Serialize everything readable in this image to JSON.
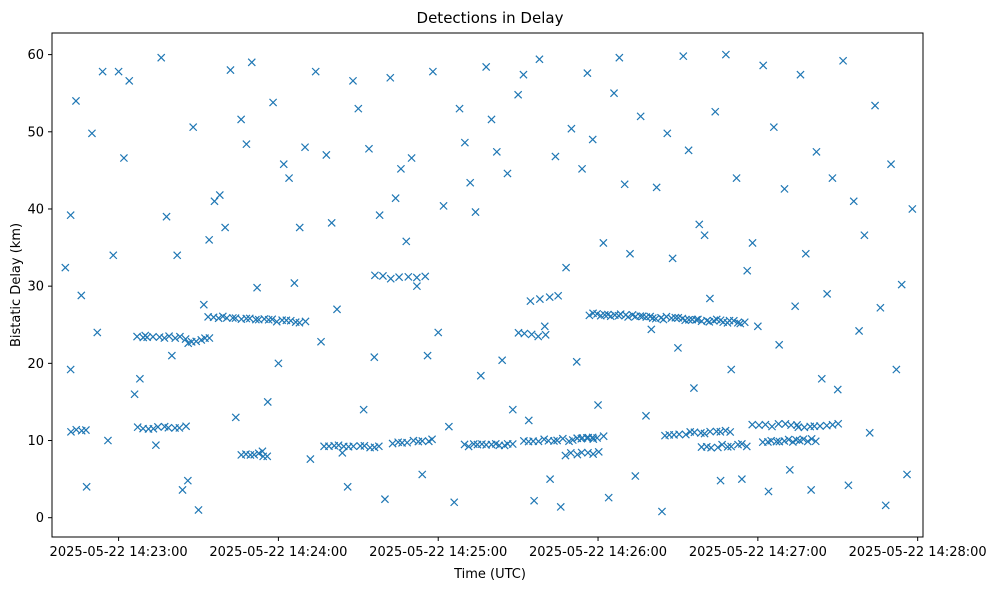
{
  "chart_data": {
    "type": "scatter",
    "title": "Detections in Delay",
    "xlabel": "Time (UTC)",
    "ylabel": "Bistatic Delay (km)",
    "x_ticks": [
      "2025-05-22 14:23:00",
      "2025-05-22 14:24:00",
      "2025-05-22 14:25:00",
      "2025-05-22 14:26:00",
      "2025-05-22 14:27:00",
      "2025-05-22 14:28:00"
    ],
    "x_tick_values": [
      0,
      60,
      120,
      180,
      240,
      300
    ],
    "y_ticks": [
      "0",
      "10",
      "20",
      "30",
      "40",
      "50",
      "60"
    ],
    "y_tick_values": [
      0,
      10,
      20,
      30,
      40,
      50,
      60
    ],
    "xlim": [
      -25,
      302
    ],
    "ylim": [
      -2.5,
      62.8
    ],
    "marker": "x",
    "marker_color": "#1f77b4",
    "grid": false,
    "clutter": [
      {
        "x0": -18,
        "x1": -12,
        "y0": 11.2,
        "y1": 11.2,
        "n": 4
      },
      {
        "x0": 7,
        "x1": 25,
        "y0": 11.6,
        "y1": 11.7,
        "n": 10
      },
      {
        "x0": 7,
        "x1": 25,
        "y0": 23.5,
        "y1": 23.3,
        "n": 10
      },
      {
        "x0": 46,
        "x1": 56,
        "y0": 8.3,
        "y1": 8.1,
        "n": 7
      },
      {
        "x0": 26,
        "x1": 34,
        "y0": 22.8,
        "y1": 23.2,
        "n": 6
      },
      {
        "x0": 34,
        "x1": 70,
        "y0": 26.0,
        "y1": 25.3,
        "n": 22
      },
      {
        "x0": 96,
        "x1": 115,
        "y0": 31.2,
        "y1": 31.1,
        "n": 7
      },
      {
        "x0": 77,
        "x1": 98,
        "y0": 9.4,
        "y1": 9.1,
        "n": 12
      },
      {
        "x0": 103,
        "x1": 118,
        "y0": 9.8,
        "y1": 10.0,
        "n": 9
      },
      {
        "x0": 130,
        "x1": 148,
        "y0": 9.3,
        "y1": 9.6,
        "n": 12
      },
      {
        "x0": 152,
        "x1": 178,
        "y0": 9.9,
        "y1": 10.2,
        "n": 15
      },
      {
        "x0": 150,
        "x1": 160,
        "y0": 23.8,
        "y1": 23.6,
        "n": 5
      },
      {
        "x0": 155,
        "x1": 165,
        "y0": 28.0,
        "y1": 28.6,
        "n": 4
      },
      {
        "x0": 168,
        "x1": 180,
        "y0": 8.2,
        "y1": 8.4,
        "n": 7
      },
      {
        "x0": 172,
        "x1": 182,
        "y0": 10.4,
        "y1": 10.4,
        "n": 6
      },
      {
        "x0": 177,
        "x1": 235,
        "y0": 26.4,
        "y1": 25.3,
        "n": 45
      },
      {
        "x0": 205,
        "x1": 230,
        "y0": 10.8,
        "y1": 11.2,
        "n": 14
      },
      {
        "x0": 219,
        "x1": 236,
        "y0": 9.2,
        "y1": 9.4,
        "n": 10
      },
      {
        "x0": 238,
        "x1": 255,
        "y0": 12.0,
        "y1": 12.0,
        "n": 8
      },
      {
        "x0": 242,
        "x1": 262,
        "y0": 9.8,
        "y1": 10.1,
        "n": 14
      },
      {
        "x0": 255,
        "x1": 270,
        "y0": 11.8,
        "y1": 12.0,
        "n": 8
      }
    ],
    "scattered": [
      [
        -20,
        32.4
      ],
      [
        -18,
        39.2
      ],
      [
        -18,
        19.2
      ],
      [
        -16,
        54.0
      ],
      [
        -14,
        28.8
      ],
      [
        -12,
        4.0
      ],
      [
        -10,
        49.8
      ],
      [
        -8,
        24.0
      ],
      [
        -6,
        57.8
      ],
      [
        -4,
        10.0
      ],
      [
        -2,
        34.0
      ],
      [
        0,
        57.8
      ],
      [
        2,
        46.6
      ],
      [
        4,
        56.6
      ],
      [
        6,
        16.0
      ],
      [
        8,
        18.0
      ],
      [
        10,
        23.6
      ],
      [
        14,
        9.4
      ],
      [
        16,
        59.6
      ],
      [
        18,
        39.0
      ],
      [
        20,
        21.0
      ],
      [
        22,
        34.0
      ],
      [
        24,
        3.6
      ],
      [
        26,
        4.8
      ],
      [
        28,
        50.6
      ],
      [
        30,
        1.0
      ],
      [
        32,
        27.6
      ],
      [
        34,
        36.0
      ],
      [
        36,
        41.0
      ],
      [
        38,
        41.8
      ],
      [
        40,
        37.6
      ],
      [
        42,
        58.0
      ],
      [
        44,
        13.0
      ],
      [
        46,
        51.6
      ],
      [
        48,
        48.4
      ],
      [
        50,
        59.0
      ],
      [
        52,
        29.8
      ],
      [
        54,
        8.6
      ],
      [
        56,
        15.0
      ],
      [
        58,
        53.8
      ],
      [
        60,
        20.0
      ],
      [
        62,
        45.8
      ],
      [
        64,
        44.0
      ],
      [
        66,
        30.4
      ],
      [
        68,
        37.6
      ],
      [
        70,
        48.0
      ],
      [
        72,
        7.6
      ],
      [
        74,
        57.8
      ],
      [
        76,
        22.8
      ],
      [
        78,
        47.0
      ],
      [
        80,
        38.2
      ],
      [
        82,
        27.0
      ],
      [
        84,
        8.4
      ],
      [
        86,
        4.0
      ],
      [
        88,
        56.6
      ],
      [
        90,
        53.0
      ],
      [
        92,
        14.0
      ],
      [
        94,
        47.8
      ],
      [
        96,
        20.8
      ],
      [
        98,
        39.2
      ],
      [
        100,
        2.4
      ],
      [
        102,
        57.0
      ],
      [
        104,
        41.4
      ],
      [
        106,
        45.2
      ],
      [
        108,
        35.8
      ],
      [
        110,
        46.6
      ],
      [
        112,
        30.0
      ],
      [
        114,
        5.6
      ],
      [
        116,
        21.0
      ],
      [
        118,
        57.8
      ],
      [
        120,
        24.0
      ],
      [
        122,
        40.4
      ],
      [
        124,
        11.8
      ],
      [
        126,
        2.0
      ],
      [
        128,
        53.0
      ],
      [
        130,
        48.6
      ],
      [
        132,
        43.4
      ],
      [
        134,
        39.6
      ],
      [
        136,
        18.4
      ],
      [
        138,
        58.4
      ],
      [
        140,
        51.6
      ],
      [
        142,
        47.4
      ],
      [
        144,
        20.4
      ],
      [
        146,
        44.6
      ],
      [
        148,
        14.0
      ],
      [
        150,
        54.8
      ],
      [
        152,
        57.4
      ],
      [
        154,
        12.6
      ],
      [
        156,
        2.2
      ],
      [
        158,
        59.4
      ],
      [
        160,
        24.8
      ],
      [
        162,
        5.0
      ],
      [
        164,
        46.8
      ],
      [
        166,
        1.4
      ],
      [
        168,
        32.4
      ],
      [
        170,
        50.4
      ],
      [
        172,
        20.2
      ],
      [
        174,
        45.2
      ],
      [
        176,
        57.6
      ],
      [
        178,
        49.0
      ],
      [
        180,
        14.6
      ],
      [
        182,
        35.6
      ],
      [
        184,
        2.6
      ],
      [
        186,
        55.0
      ],
      [
        188,
        59.6
      ],
      [
        190,
        43.2
      ],
      [
        192,
        34.2
      ],
      [
        194,
        5.4
      ],
      [
        196,
        52.0
      ],
      [
        198,
        13.2
      ],
      [
        200,
        24.4
      ],
      [
        202,
        42.8
      ],
      [
        204,
        0.8
      ],
      [
        206,
        49.8
      ],
      [
        208,
        33.6
      ],
      [
        210,
        22.0
      ],
      [
        212,
        59.8
      ],
      [
        214,
        47.6
      ],
      [
        216,
        16.8
      ],
      [
        218,
        38.0
      ],
      [
        220,
        36.6
      ],
      [
        222,
        28.4
      ],
      [
        224,
        52.6
      ],
      [
        226,
        4.8
      ],
      [
        228,
        60.0
      ],
      [
        230,
        19.2
      ],
      [
        232,
        44.0
      ],
      [
        234,
        5.0
      ],
      [
        236,
        32.0
      ],
      [
        238,
        35.6
      ],
      [
        240,
        24.8
      ],
      [
        242,
        58.6
      ],
      [
        244,
        3.4
      ],
      [
        246,
        50.6
      ],
      [
        248,
        22.4
      ],
      [
        250,
        42.6
      ],
      [
        252,
        6.2
      ],
      [
        254,
        27.4
      ],
      [
        256,
        57.4
      ],
      [
        258,
        34.2
      ],
      [
        260,
        3.6
      ],
      [
        262,
        47.4
      ],
      [
        264,
        18.0
      ],
      [
        266,
        29.0
      ],
      [
        268,
        44.0
      ],
      [
        270,
        16.6
      ],
      [
        272,
        59.2
      ],
      [
        274,
        4.2
      ],
      [
        276,
        41.0
      ],
      [
        278,
        24.2
      ],
      [
        280,
        36.6
      ],
      [
        282,
        11.0
      ],
      [
        284,
        53.4
      ],
      [
        286,
        27.2
      ],
      [
        288,
        1.6
      ],
      [
        290,
        45.8
      ],
      [
        292,
        19.2
      ],
      [
        294,
        30.2
      ],
      [
        296,
        5.6
      ],
      [
        298,
        40.0
      ]
    ]
  }
}
